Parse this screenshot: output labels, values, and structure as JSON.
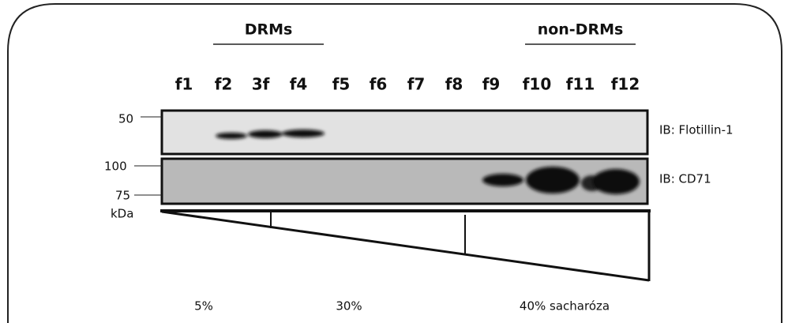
{
  "header": {
    "left_group": "DRMs",
    "right_group": "non-DRMs"
  },
  "lanes": [
    "f1",
    "f2",
    "3f",
    "f4",
    "f5",
    "f6",
    "f7",
    "f8",
    "f9",
    "f10",
    "f11",
    "f12"
  ],
  "markers": {
    "m50": "50",
    "m100": "100",
    "m75": "75",
    "unit": "kDa"
  },
  "blots": [
    "IB: Flotillin-1",
    "IB: CD71"
  ],
  "gradient": [
    "5%",
    "30%",
    "40% sacharóza"
  ]
}
